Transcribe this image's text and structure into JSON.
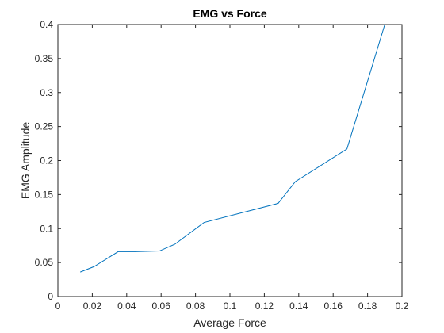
{
  "chart_data": {
    "type": "line",
    "title": "EMG vs Force",
    "xlabel": "Average Force",
    "ylabel": "EMG Amplitude",
    "xlim": [
      0,
      0.2
    ],
    "ylim": [
      0,
      0.4
    ],
    "xticks": [
      "0",
      "0.02",
      "0.04",
      "0.06",
      "0.08",
      "0.1",
      "0.12",
      "0.14",
      "0.16",
      "0.18",
      "0.2"
    ],
    "yticks": [
      "0",
      "0.05",
      "0.1",
      "0.15",
      "0.2",
      "0.25",
      "0.3",
      "0.35",
      "0.4"
    ],
    "grid": false,
    "line_color": "#0072BD",
    "series": [
      {
        "x": [
          0.013,
          0.021,
          0.035,
          0.045,
          0.059,
          0.068,
          0.085,
          0.128,
          0.138,
          0.168,
          0.19
        ],
        "y": [
          0.036,
          0.044,
          0.066,
          0.066,
          0.067,
          0.077,
          0.109,
          0.137,
          0.169,
          0.217,
          0.4
        ]
      }
    ]
  }
}
